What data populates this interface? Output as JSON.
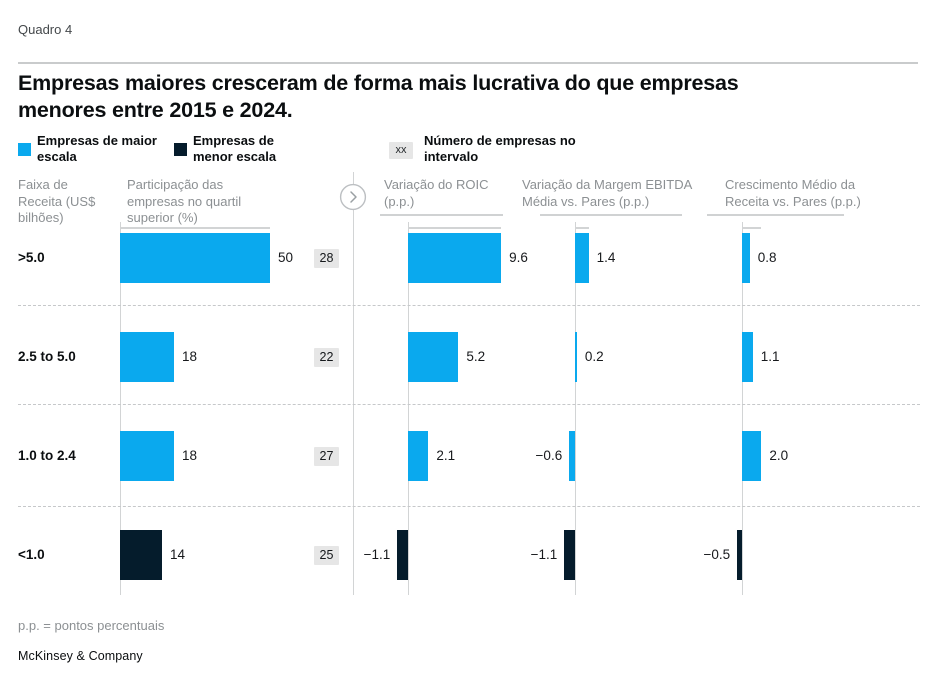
{
  "page": {
    "kicker": "Quadro 4",
    "title": "Empresas maiores cresceram de forma mais lucrativa do que empresas menores entre 2015 e 2024.",
    "footnote": "p.p. = pontos percentuais",
    "brand": "McKinsey & Company"
  },
  "legend": {
    "large_label": "Empresas de maior escala",
    "small_label": "Empresas de menor escala",
    "count_badge": "xx",
    "count_label": "Número de empresas no intervalo"
  },
  "colors": {
    "large": "#0AA9EE",
    "small": "#051C2C",
    "badge_bg": "#E6E6E6",
    "grid_line": "#D2D4D5"
  },
  "chart_data": {
    "type": "bar",
    "orientation": "horizontal",
    "category_header": "Faixa de Receita (US$ bilhões)",
    "categories": [
      ">5.0",
      "2.5 to 5.0",
      "1.0 to 2.4",
      "<1.0"
    ],
    "counts": {
      "label": "Número de empresas no intervalo",
      "values": [
        28,
        22,
        27,
        25
      ]
    },
    "row_series_key": [
      "large",
      "large",
      "large",
      "small"
    ],
    "legend": [
      "Empresas de maior escala",
      "Empresas de menor escala"
    ],
    "grid": false,
    "charts": [
      {
        "title": "Participação das empresas no quartil superior (%)",
        "values": [
          50,
          18,
          18,
          14
        ],
        "labels": [
          "50",
          "18",
          "18",
          "14"
        ],
        "xlim": [
          0,
          60
        ]
      },
      {
        "title": "Variação do ROIC (p.p.)",
        "values": [
          9.6,
          5.2,
          2.1,
          -1.1
        ],
        "labels": [
          "9.6",
          "5.2",
          "2.1",
          "−1.1"
        ],
        "xlim": [
          -2,
          12
        ]
      },
      {
        "title": "Variação da Margem EBITDA Média vs. Pares (p.p.)",
        "values": [
          1.4,
          0.2,
          -0.6,
          -1.1
        ],
        "labels": [
          "1.4",
          "0.2",
          "−0.6",
          "−1.1"
        ],
        "xlim": [
          -2,
          12
        ]
      },
      {
        "title": "Crescimento Médio da Receita vs. Pares (p.p.)",
        "values": [
          0.8,
          1.1,
          2.0,
          -0.5
        ],
        "labels": [
          "0.8",
          "1.1",
          "2.0",
          "−0.5"
        ],
        "xlim": [
          -2,
          12
        ]
      }
    ]
  }
}
